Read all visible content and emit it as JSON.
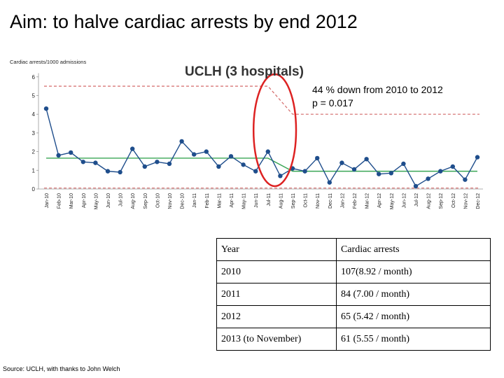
{
  "slide": {
    "title": "Aim: to halve cardiac arrests by end 2012",
    "source": "Source: UCLH, with thanks to John Welch"
  },
  "chart_data": {
    "type": "line",
    "title": "UCLH (3 hospitals)",
    "ylabel": "Cardiac arrests/1000 admissions",
    "xlabel": "",
    "ylim": [
      0,
      6
    ],
    "yticks": [
      0,
      1,
      2,
      3,
      4,
      5,
      6
    ],
    "annotation": {
      "line1": "44 % down from 2010 to 2012",
      "line2": "p = 0.017"
    },
    "categories": [
      "Jan-10",
      "Feb-10",
      "Mar-10",
      "Apr-10",
      "May-10",
      "Jun-10",
      "Jul-10",
      "Aug-10",
      "Sep-10",
      "Oct-10",
      "Nov-10",
      "Dec-10",
      "Jan-11",
      "Feb-11",
      "Mar-11",
      "Apr-11",
      "May-11",
      "Jun-11",
      "Jul-11",
      "Aug-11",
      "Sep-11",
      "Oct-11",
      "Nov-11",
      "Dec-11",
      "Jan-12",
      "Feb-12",
      "Mar-12",
      "Apr-12",
      "May-12",
      "Jun-12",
      "Jul-12",
      "Aug-12",
      "Sep-12",
      "Oct-12",
      "Nov-12",
      "Dec-12"
    ],
    "series": [
      {
        "name": "Cardiac arrests/1000 admissions",
        "color": "#1f4e8c",
        "values": [
          4.3,
          1.8,
          1.95,
          1.45,
          1.4,
          0.95,
          0.9,
          2.15,
          1.2,
          1.45,
          1.35,
          2.55,
          1.85,
          2.0,
          1.2,
          1.75,
          1.3,
          0.95,
          2.0,
          0.7,
          1.1,
          0.95,
          1.65,
          0.35,
          1.4,
          1.05,
          1.6,
          0.8,
          0.85,
          1.35,
          0.15,
          0.55,
          0.95,
          1.2,
          0.5,
          1.7
        ]
      }
    ],
    "center_line": {
      "name": "Mean",
      "color": "#3aa655",
      "segments": [
        {
          "from": "Jan-10",
          "to": "Jul-11",
          "value": 1.65
        },
        {
          "from": "Sep-11",
          "to": "Dec-12",
          "value": 0.95
        }
      ]
    },
    "upper_control_limit": {
      "name": "Upper control limit",
      "color": "#d46a6a",
      "segments": [
        {
          "from": "Jan-10",
          "to": "Jul-11",
          "value": 5.5
        },
        {
          "from": "Sep-11",
          "to": "Dec-12",
          "value": 4.0
        }
      ]
    },
    "lower_control_limit": {
      "name": "Lower control limit",
      "color": "#d46a6a",
      "value": 0.05
    },
    "highlight": {
      "shape": "ellipse",
      "color": "#dd2222",
      "from": "Jun-11",
      "to": "Sep-11"
    }
  },
  "table": {
    "header": [
      "Year",
      "Cardiac arrests"
    ],
    "rows": [
      [
        "2010",
        "107(8.92 / month)"
      ],
      [
        "2011",
        "84 (7.00 / month)"
      ],
      [
        "2012",
        "65 (5.42 / month)"
      ],
      [
        "2013 (to November)",
        "61 (5.55 / month)"
      ]
    ]
  }
}
